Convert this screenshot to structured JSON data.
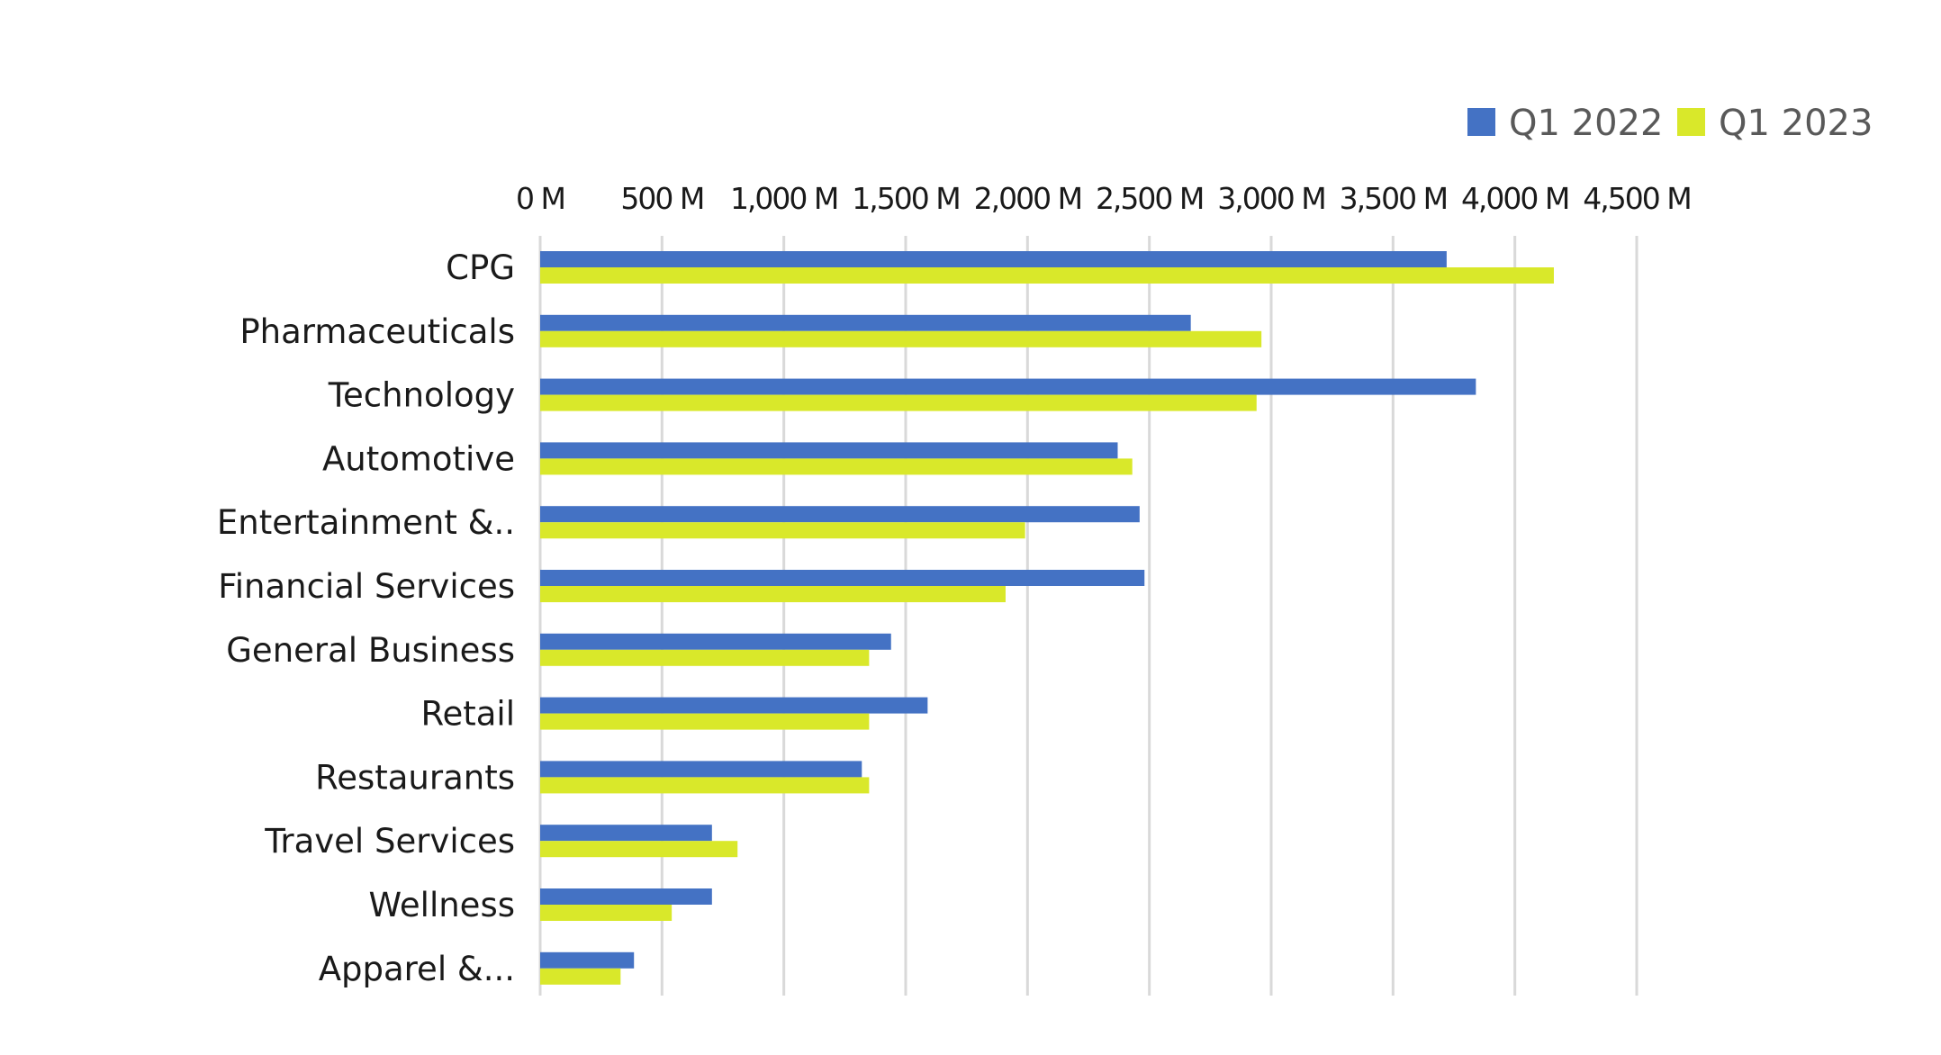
{
  "chart_data": {
    "type": "bar",
    "orientation": "horizontal",
    "title": "",
    "xlabel": "",
    "ylabel": "",
    "categories": [
      "CPG",
      "Pharmaceuticals",
      "Technology",
      "Automotive",
      "Entertainment &..",
      "Financial Services",
      "General Business",
      "Retail",
      "Restaurants",
      "Travel Services",
      "Wellness",
      "Apparel &..."
    ],
    "series": [
      {
        "name": "Q1 2022",
        "color": "#4472c4",
        "values": [
          3720,
          2670,
          3840,
          2370,
          2460,
          2480,
          1440,
          1590,
          1320,
          705,
          705,
          385
        ]
      },
      {
        "name": "Q1 2023",
        "color": "#d9e82a",
        "values": [
          4160,
          2960,
          2940,
          2430,
          1990,
          1910,
          1350,
          1350,
          1350,
          810,
          540,
          330
        ]
      }
    ],
    "xlim": [
      0,
      4500
    ],
    "xticks": [
      0,
      500,
      1000,
      1500,
      2000,
      2500,
      3000,
      3500,
      4000,
      4500
    ],
    "xtick_labels": [
      "0 M",
      "500 M",
      "1,000 M",
      "1,500 M",
      "2,000 M",
      "2,500 M",
      "3,000 M",
      "3,500 M",
      "4,000 M",
      "4,500 M"
    ],
    "x_axis_position": "top",
    "grid": true,
    "grid_color": "#d9d9d9",
    "legend_position": "top-right"
  }
}
